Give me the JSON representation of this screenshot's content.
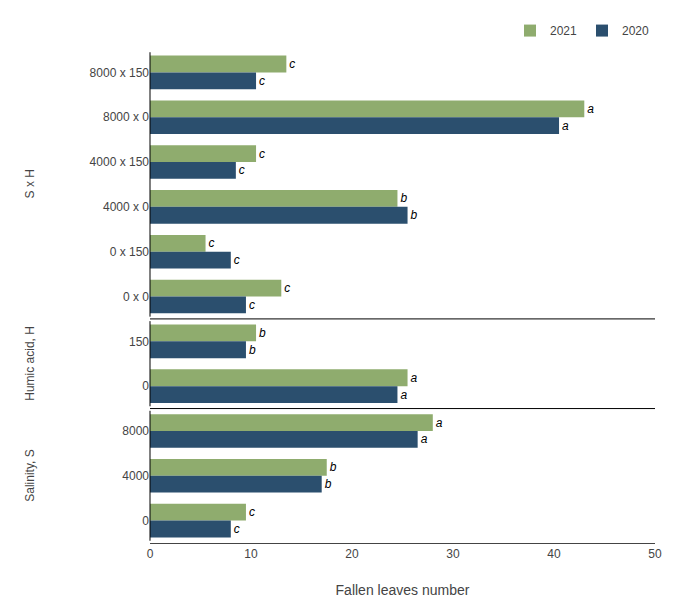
{
  "chart_data": {
    "type": "bar",
    "orientation": "horizontal",
    "xlabel": "Fallen leaves number",
    "categories": [
      "8000 x 150",
      "8000 x 0",
      "4000 x 150",
      "4000 x 0",
      "0 x 150",
      "0 x 0",
      "150",
      "0",
      "8000",
      "4000",
      "0"
    ],
    "category_sections": [
      "S x H",
      "S x H",
      "S x H",
      "S x H",
      "S x H",
      "S x H",
      "Humic acid, H",
      "Humic acid, H",
      "Salinity, S",
      "Salinity, S",
      "Salinity, S"
    ],
    "series": [
      {
        "name": "2021",
        "color": "#8fac6e",
        "values": [
          13.5,
          43.0,
          10.5,
          24.5,
          5.5,
          13.0,
          10.5,
          25.5,
          28.0,
          17.5,
          9.5
        ],
        "labels": [
          "c",
          "a",
          "c",
          "b",
          "c",
          "c",
          "b",
          "a",
          "a",
          "b",
          "c"
        ]
      },
      {
        "name": "2020",
        "color": "#2b4f6e",
        "values": [
          10.5,
          40.5,
          8.5,
          25.5,
          8.0,
          9.5,
          9.5,
          24.5,
          26.5,
          17.0,
          8.0
        ],
        "labels": [
          "c",
          "a",
          "c",
          "b",
          "c",
          "c",
          "b",
          "a",
          "a",
          "b",
          "c"
        ]
      }
    ],
    "xlim": [
      0,
      50
    ],
    "xticks": [
      0,
      10,
      20,
      30,
      40,
      50
    ],
    "legend": "upper right",
    "grid": false
  }
}
